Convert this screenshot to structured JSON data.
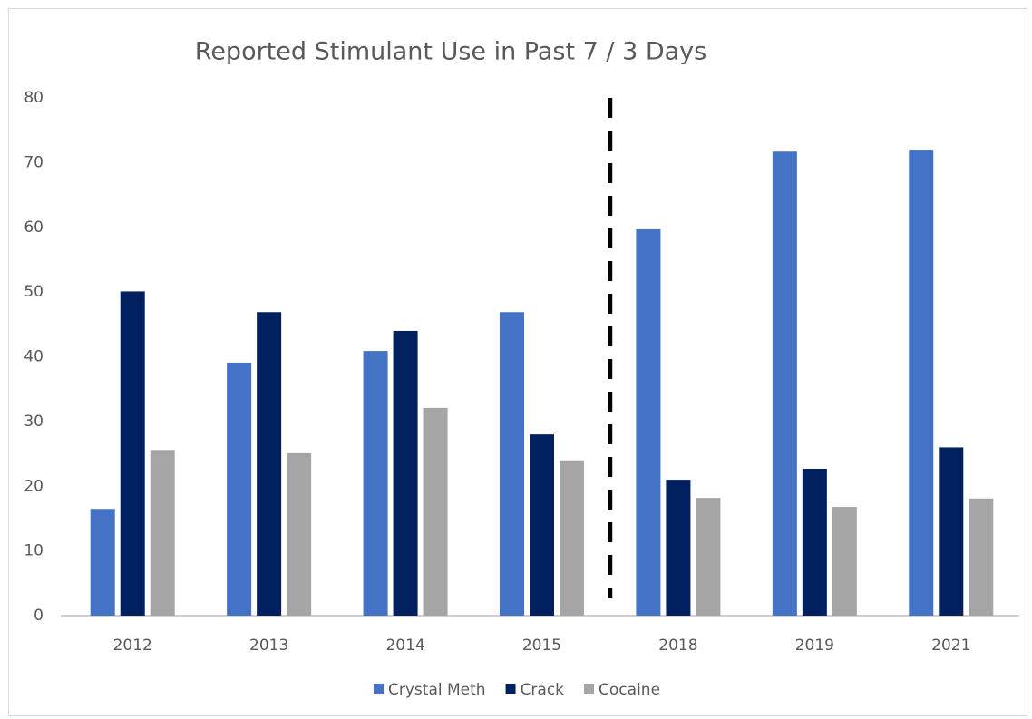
{
  "chart_data": {
    "type": "bar",
    "title": "Reported Stimulant Use in Past 7 / 3 Days",
    "categories": [
      "2012",
      "2013",
      "2014",
      "2015",
      "2018",
      "2019",
      "2021"
    ],
    "series": [
      {
        "name": "Crystal Meth",
        "color": "#4472c4",
        "values": [
          16.5,
          39.1,
          40.9,
          46.9,
          59.7,
          71.7,
          72.0
        ]
      },
      {
        "name": "Crack",
        "color": "#002060",
        "values": [
          50.1,
          46.9,
          44,
          28,
          21,
          22.7,
          26
        ]
      },
      {
        "name": "Cocaine",
        "color": "#a5a5a5",
        "values": [
          25.6,
          25.1,
          32.1,
          24,
          18.2,
          16.8,
          18.1
        ]
      }
    ],
    "ylim": [
      0,
      80
    ],
    "yticks": [
      0,
      10,
      20,
      30,
      40,
      50,
      60,
      70,
      80
    ],
    "grid": false,
    "legend": "bottom"
  }
}
